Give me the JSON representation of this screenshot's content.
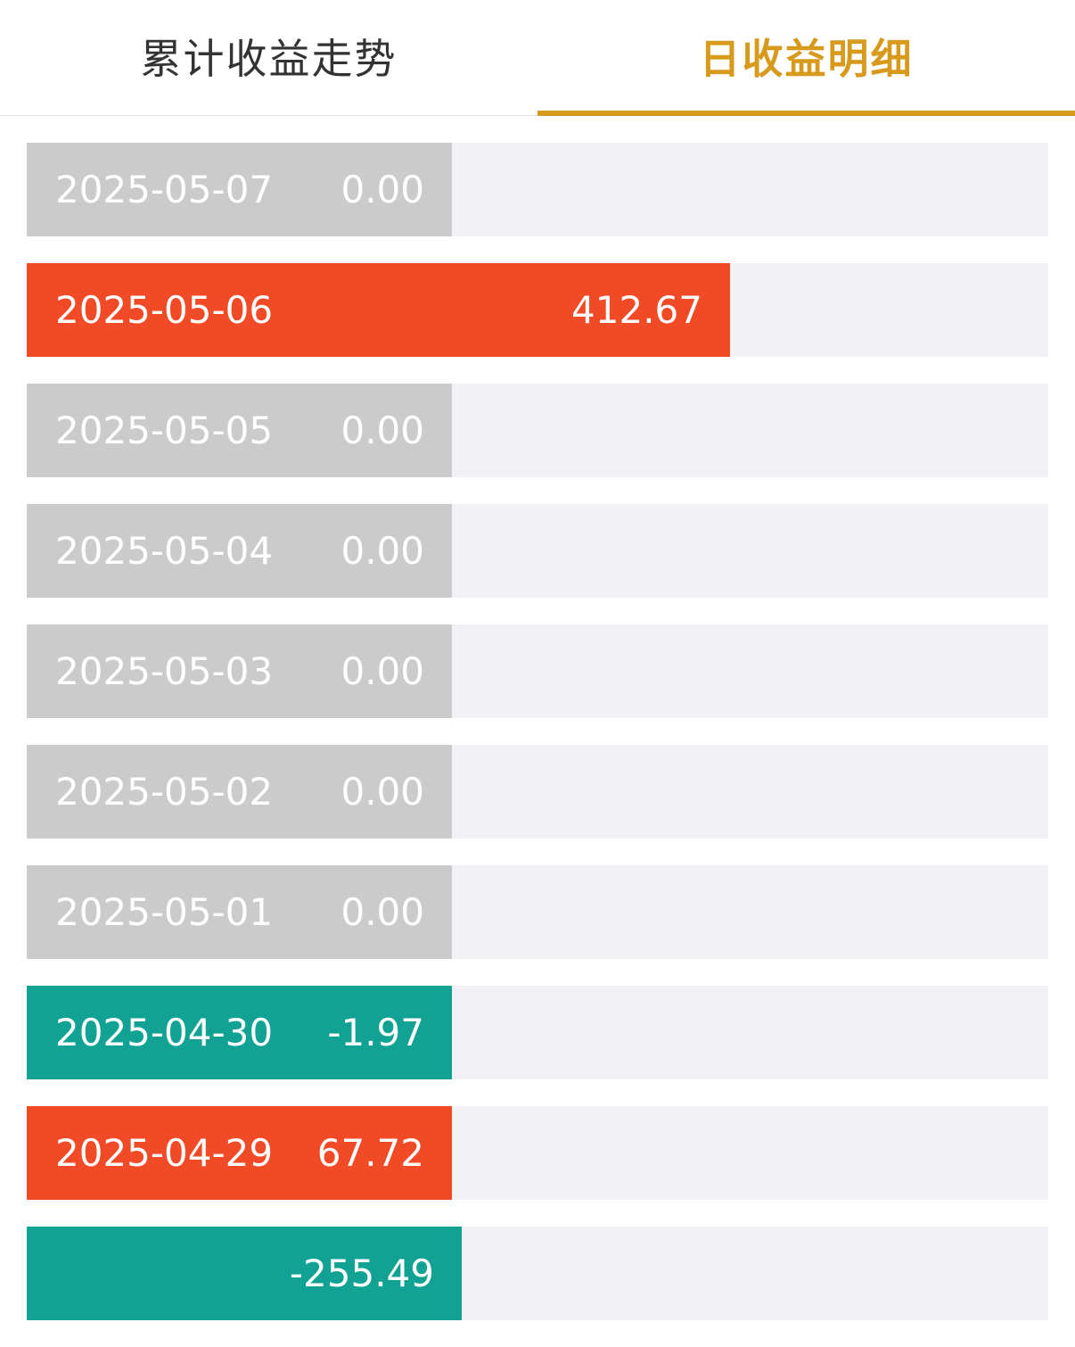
{
  "tabs": [
    {
      "label": "累计收益走势",
      "active": false
    },
    {
      "label": "日收益明细",
      "active": true
    }
  ],
  "accent_color": "#d79a1d",
  "colors": {
    "gain": "#f04a27",
    "loss": "#12a294",
    "zero": "#cbcbcb",
    "track": "#f1f1f5"
  },
  "rows": [
    {
      "date": "2025-05-07",
      "value": "0.00",
      "amount": 0.0,
      "trend": "zero"
    },
    {
      "date": "2025-05-06",
      "value": "412.67",
      "amount": 412.67,
      "trend": "gain"
    },
    {
      "date": "2025-05-05",
      "value": "0.00",
      "amount": 0.0,
      "trend": "zero"
    },
    {
      "date": "2025-05-04",
      "value": "0.00",
      "amount": 0.0,
      "trend": "zero"
    },
    {
      "date": "2025-05-03",
      "value": "0.00",
      "amount": 0.0,
      "trend": "zero"
    },
    {
      "date": "2025-05-02",
      "value": "0.00",
      "amount": 0.0,
      "trend": "zero"
    },
    {
      "date": "2025-05-01",
      "value": "0.00",
      "amount": 0.0,
      "trend": "zero"
    },
    {
      "date": "2025-04-30",
      "value": "-1.97",
      "amount": -1.97,
      "trend": "loss"
    },
    {
      "date": "2025-04-29",
      "value": "67.72",
      "amount": 67.72,
      "trend": "gain"
    },
    {
      "date": "",
      "value": "-255.49",
      "amount": -255.49,
      "trend": "loss",
      "date_obscured": true
    }
  ]
}
